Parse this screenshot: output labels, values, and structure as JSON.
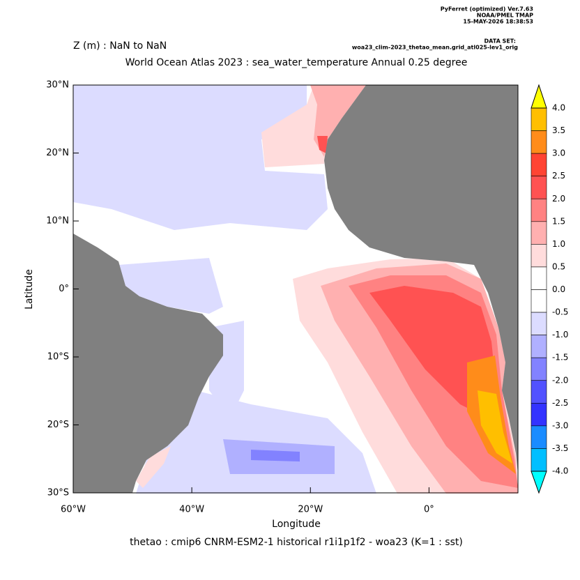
{
  "chart_data": {
    "type": "map",
    "header": [
      "PyFerret (optimized) Ver.7.63",
      "NOAA/PMEL TMAP",
      "15-MAY-2026 18:38:53"
    ],
    "dataset_label": "DATA SET:",
    "dataset": "woa23_clim-2023_thetao_mean.grid_atl025-lev1_orig",
    "subtitle": "Z (m) : NaN to NaN",
    "title": "World Ocean Atlas 2023 : sea_water_temperature Annual  0.25 degree",
    "xlabel": "Longitude",
    "ylabel": "Latitude",
    "caption": "thetao : cmip6 CNRM-ESM2-1 historical r1i1p1f2 - woa23  (K=1 : sst)",
    "xlim": [
      -60,
      15
    ],
    "ylim": [
      -30,
      30
    ],
    "xticks": [
      {
        "value": -60,
        "label": "60°W"
      },
      {
        "value": -40,
        "label": "40°W"
      },
      {
        "value": -20,
        "label": "20°W"
      },
      {
        "value": 0,
        "label": "0°"
      }
    ],
    "yticks": [
      {
        "value": 30,
        "label": "30°N"
      },
      {
        "value": 20,
        "label": "20°N"
      },
      {
        "value": 10,
        "label": "10°N"
      },
      {
        "value": 0,
        "label": "0°"
      },
      {
        "value": -10,
        "label": "10°S"
      },
      {
        "value": -20,
        "label": "20°S"
      },
      {
        "value": -30,
        "label": "30°S"
      }
    ],
    "land_color": "#808080",
    "colorbar": {
      "levels": [
        {
          "value": 4,
          "label": "4.0"
        },
        {
          "value": 3.5,
          "label": "3.5"
        },
        {
          "value": 3,
          "label": "3.0"
        },
        {
          "value": 2.5,
          "label": "2.5"
        },
        {
          "value": 2,
          "label": "2.0"
        },
        {
          "value": 1.5,
          "label": "1.5"
        },
        {
          "value": 1,
          "label": "1.0"
        },
        {
          "value": 0.5,
          "label": "0.5"
        },
        {
          "value": 0,
          "label": "0.0"
        },
        {
          "value": -0.5,
          "label": "-0.5"
        },
        {
          "value": -1,
          "label": "-1.0"
        },
        {
          "value": -1.5,
          "label": "-1.5"
        },
        {
          "value": -2,
          "label": "-2.0"
        },
        {
          "value": -2.5,
          "label": "-2.5"
        },
        {
          "value": -3,
          "label": "-3.0"
        },
        {
          "value": -3.5,
          "label": "-3.5"
        },
        {
          "value": -4,
          "label": "-4.0"
        }
      ],
      "colors": [
        "#ffbf00",
        "#ff8c1a",
        "#ff4433",
        "#ff5252",
        "#ff8282",
        "#ffb0b0",
        "#ffdcdc",
        "#ffffff",
        "#ffffff",
        "#dcdcff",
        "#b0b0ff",
        "#8282ff",
        "#5252ff",
        "#3333ff",
        "#1a8cff",
        "#00bfff"
      ],
      "over_color": "#ffff00",
      "under_color": "#00ffff"
    }
  }
}
